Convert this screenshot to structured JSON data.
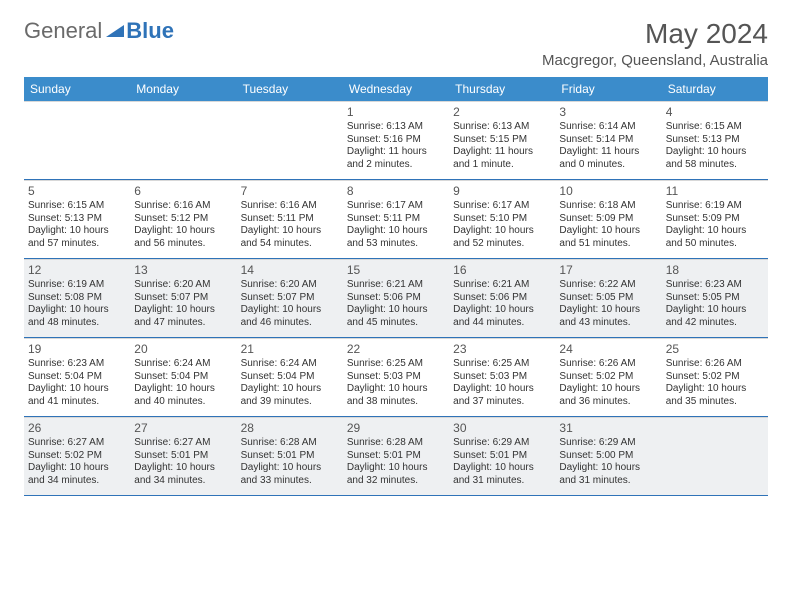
{
  "logo": {
    "text1": "General",
    "text2": "Blue"
  },
  "title": "May 2024",
  "location": "Macgregor, Queensland, Australia",
  "colors": {
    "header_bg": "#3b8ccb",
    "header_text": "#ffffff",
    "border": "#2f73b8",
    "shaded_bg": "#eef0f2",
    "text": "#333333",
    "daynum": "#555555"
  },
  "weekdays": [
    "Sunday",
    "Monday",
    "Tuesday",
    "Wednesday",
    "Thursday",
    "Friday",
    "Saturday"
  ],
  "weeks": [
    [
      {
        "n": "",
        "sr": "",
        "ss": "",
        "dl": ""
      },
      {
        "n": "",
        "sr": "",
        "ss": "",
        "dl": ""
      },
      {
        "n": "",
        "sr": "",
        "ss": "",
        "dl": ""
      },
      {
        "n": "1",
        "sr": "Sunrise: 6:13 AM",
        "ss": "Sunset: 5:16 PM",
        "dl": "Daylight: 11 hours and 2 minutes."
      },
      {
        "n": "2",
        "sr": "Sunrise: 6:13 AM",
        "ss": "Sunset: 5:15 PM",
        "dl": "Daylight: 11 hours and 1 minute."
      },
      {
        "n": "3",
        "sr": "Sunrise: 6:14 AM",
        "ss": "Sunset: 5:14 PM",
        "dl": "Daylight: 11 hours and 0 minutes."
      },
      {
        "n": "4",
        "sr": "Sunrise: 6:15 AM",
        "ss": "Sunset: 5:13 PM",
        "dl": "Daylight: 10 hours and 58 minutes."
      }
    ],
    [
      {
        "n": "5",
        "sr": "Sunrise: 6:15 AM",
        "ss": "Sunset: 5:13 PM",
        "dl": "Daylight: 10 hours and 57 minutes."
      },
      {
        "n": "6",
        "sr": "Sunrise: 6:16 AM",
        "ss": "Sunset: 5:12 PM",
        "dl": "Daylight: 10 hours and 56 minutes."
      },
      {
        "n": "7",
        "sr": "Sunrise: 6:16 AM",
        "ss": "Sunset: 5:11 PM",
        "dl": "Daylight: 10 hours and 54 minutes."
      },
      {
        "n": "8",
        "sr": "Sunrise: 6:17 AM",
        "ss": "Sunset: 5:11 PM",
        "dl": "Daylight: 10 hours and 53 minutes."
      },
      {
        "n": "9",
        "sr": "Sunrise: 6:17 AM",
        "ss": "Sunset: 5:10 PM",
        "dl": "Daylight: 10 hours and 52 minutes."
      },
      {
        "n": "10",
        "sr": "Sunrise: 6:18 AM",
        "ss": "Sunset: 5:09 PM",
        "dl": "Daylight: 10 hours and 51 minutes."
      },
      {
        "n": "11",
        "sr": "Sunrise: 6:19 AM",
        "ss": "Sunset: 5:09 PM",
        "dl": "Daylight: 10 hours and 50 minutes."
      }
    ],
    [
      {
        "n": "12",
        "sr": "Sunrise: 6:19 AM",
        "ss": "Sunset: 5:08 PM",
        "dl": "Daylight: 10 hours and 48 minutes."
      },
      {
        "n": "13",
        "sr": "Sunrise: 6:20 AM",
        "ss": "Sunset: 5:07 PM",
        "dl": "Daylight: 10 hours and 47 minutes."
      },
      {
        "n": "14",
        "sr": "Sunrise: 6:20 AM",
        "ss": "Sunset: 5:07 PM",
        "dl": "Daylight: 10 hours and 46 minutes."
      },
      {
        "n": "15",
        "sr": "Sunrise: 6:21 AM",
        "ss": "Sunset: 5:06 PM",
        "dl": "Daylight: 10 hours and 45 minutes."
      },
      {
        "n": "16",
        "sr": "Sunrise: 6:21 AM",
        "ss": "Sunset: 5:06 PM",
        "dl": "Daylight: 10 hours and 44 minutes."
      },
      {
        "n": "17",
        "sr": "Sunrise: 6:22 AM",
        "ss": "Sunset: 5:05 PM",
        "dl": "Daylight: 10 hours and 43 minutes."
      },
      {
        "n": "18",
        "sr": "Sunrise: 6:23 AM",
        "ss": "Sunset: 5:05 PM",
        "dl": "Daylight: 10 hours and 42 minutes."
      }
    ],
    [
      {
        "n": "19",
        "sr": "Sunrise: 6:23 AM",
        "ss": "Sunset: 5:04 PM",
        "dl": "Daylight: 10 hours and 41 minutes."
      },
      {
        "n": "20",
        "sr": "Sunrise: 6:24 AM",
        "ss": "Sunset: 5:04 PM",
        "dl": "Daylight: 10 hours and 40 minutes."
      },
      {
        "n": "21",
        "sr": "Sunrise: 6:24 AM",
        "ss": "Sunset: 5:04 PM",
        "dl": "Daylight: 10 hours and 39 minutes."
      },
      {
        "n": "22",
        "sr": "Sunrise: 6:25 AM",
        "ss": "Sunset: 5:03 PM",
        "dl": "Daylight: 10 hours and 38 minutes."
      },
      {
        "n": "23",
        "sr": "Sunrise: 6:25 AM",
        "ss": "Sunset: 5:03 PM",
        "dl": "Daylight: 10 hours and 37 minutes."
      },
      {
        "n": "24",
        "sr": "Sunrise: 6:26 AM",
        "ss": "Sunset: 5:02 PM",
        "dl": "Daylight: 10 hours and 36 minutes."
      },
      {
        "n": "25",
        "sr": "Sunrise: 6:26 AM",
        "ss": "Sunset: 5:02 PM",
        "dl": "Daylight: 10 hours and 35 minutes."
      }
    ],
    [
      {
        "n": "26",
        "sr": "Sunrise: 6:27 AM",
        "ss": "Sunset: 5:02 PM",
        "dl": "Daylight: 10 hours and 34 minutes."
      },
      {
        "n": "27",
        "sr": "Sunrise: 6:27 AM",
        "ss": "Sunset: 5:01 PM",
        "dl": "Daylight: 10 hours and 34 minutes."
      },
      {
        "n": "28",
        "sr": "Sunrise: 6:28 AM",
        "ss": "Sunset: 5:01 PM",
        "dl": "Daylight: 10 hours and 33 minutes."
      },
      {
        "n": "29",
        "sr": "Sunrise: 6:28 AM",
        "ss": "Sunset: 5:01 PM",
        "dl": "Daylight: 10 hours and 32 minutes."
      },
      {
        "n": "30",
        "sr": "Sunrise: 6:29 AM",
        "ss": "Sunset: 5:01 PM",
        "dl": "Daylight: 10 hours and 31 minutes."
      },
      {
        "n": "31",
        "sr": "Sunrise: 6:29 AM",
        "ss": "Sunset: 5:00 PM",
        "dl": "Daylight: 10 hours and 31 minutes."
      },
      {
        "n": "",
        "sr": "",
        "ss": "",
        "dl": ""
      }
    ]
  ],
  "shaded_rows": [
    2,
    4
  ]
}
